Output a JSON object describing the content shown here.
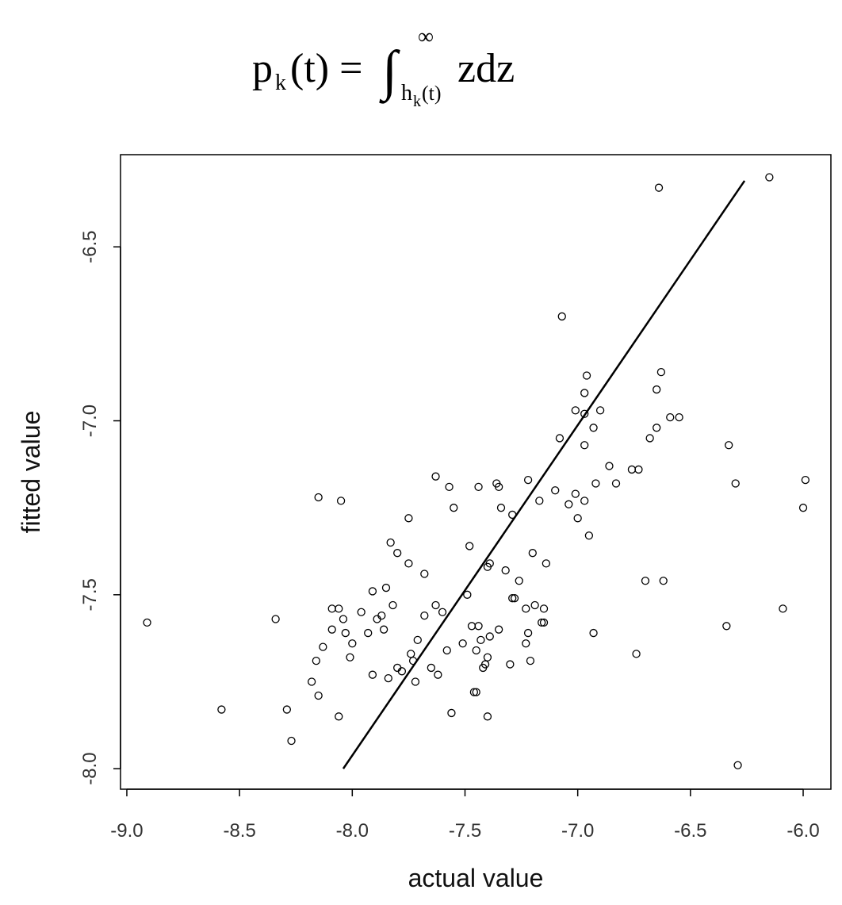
{
  "chart_data": {
    "type": "scatter",
    "title": {
      "lhs": "p",
      "lhs_sub": "k",
      "lhs_rest": "(t) =",
      "integral": "∫",
      "upper": "∞",
      "lower": "h",
      "lower_sub": "k",
      "lower_rest": "(t)",
      "integrand": "zdz"
    },
    "x_label": "actual value",
    "y_label": "fitted value",
    "xlim": [
      -9.028,
      -5.877
    ],
    "ylim": [
      -8.059,
      -6.235
    ],
    "xticks": [
      {
        "value": -9,
        "label": "-9.0"
      },
      -8.5,
      {
        "value": -8,
        "label": "-8.0"
      },
      -7.5,
      {
        "value": -7,
        "label": "-7.0"
      },
      -6.5,
      {
        "value": -6,
        "label": "-6.0"
      }
    ],
    "yticks": [
      {
        "value": -8,
        "label": "-8.0"
      },
      -7.5,
      {
        "value": -7,
        "label": "-7.0"
      },
      -6.5
    ],
    "color": "#000000",
    "x": [
      -8.91,
      -8.58,
      -8.34,
      -8.29,
      -8.27,
      -8.18,
      -8.16,
      -8.15,
      -8.15,
      -8.13,
      -8.09,
      -8.09,
      -8.06,
      -8.06,
      -8.05,
      -8.04,
      -8.03,
      -8.01,
      -8.0,
      -7.96,
      -7.93,
      -7.91,
      -7.91,
      -7.89,
      -7.87,
      -7.86,
      -7.85,
      -7.84,
      -7.82,
      -7.83,
      -7.8,
      -7.8,
      -7.78,
      -7.75,
      -7.75,
      -7.74,
      -7.73,
      -7.72,
      -7.71,
      -7.68,
      -7.68,
      -7.65,
      -7.63,
      -7.62,
      -7.63,
      -7.6,
      -7.58,
      -7.57,
      -7.56,
      -7.55,
      -7.51,
      -7.49,
      -7.48,
      -7.47,
      -7.46,
      -7.45,
      -7.45,
      -7.44,
      -7.44,
      -7.43,
      -7.42,
      -7.41,
      -7.4,
      -7.4,
      -7.4,
      -7.39,
      -7.39,
      -7.36,
      -7.35,
      -7.34,
      -7.35,
      -7.32,
      -7.3,
      -7.29,
      -7.28,
      -7.29,
      -7.26,
      -7.23,
      -7.23,
      -7.22,
      -7.22,
      -7.21,
      -7.2,
      -7.19,
      -7.17,
      -7.16,
      -7.15,
      -7.15,
      -7.14,
      -7.1,
      -7.08,
      -7.07,
      -7.04,
      -7.01,
      -7.01,
      -7.0,
      -6.97,
      -6.97,
      -6.97,
      -6.97,
      -6.96,
      -6.95,
      -6.93,
      -6.93,
      -6.92,
      -6.9,
      -6.86,
      -6.83,
      -6.76,
      -6.74,
      -6.73,
      -6.7,
      -6.68,
      -6.65,
      -6.65,
      -6.63,
      -6.62,
      -6.59,
      -6.55,
      -6.64,
      -6.33,
      -6.3,
      -6.29,
      -6.34,
      -6.15,
      -6.09,
      -6.0,
      -5.99
    ],
    "values": [
      -7.58,
      -7.83,
      -7.57,
      -7.83,
      -7.92,
      -7.75,
      -7.69,
      -7.79,
      -7.22,
      -7.65,
      -7.6,
      -7.54,
      -7.54,
      -7.85,
      -7.23,
      -7.57,
      -7.61,
      -7.68,
      -7.64,
      -7.55,
      -7.61,
      -7.49,
      -7.73,
      -7.57,
      -7.56,
      -7.6,
      -7.48,
      -7.74,
      -7.53,
      -7.35,
      -7.38,
      -7.71,
      -7.72,
      -7.28,
      -7.41,
      -7.67,
      -7.69,
      -7.75,
      -7.63,
      -7.44,
      -7.56,
      -7.71,
      -7.16,
      -7.73,
      -7.53,
      -7.55,
      -7.66,
      -7.19,
      -7.84,
      -7.25,
      -7.64,
      -7.5,
      -7.36,
      -7.59,
      -7.78,
      -7.66,
      -7.78,
      -7.19,
      -7.59,
      -7.63,
      -7.71,
      -7.7,
      -7.85,
      -7.42,
      -7.68,
      -7.41,
      -7.62,
      -7.18,
      -7.19,
      -7.25,
      -7.6,
      -7.43,
      -7.7,
      -7.51,
      -7.51,
      -7.27,
      -7.46,
      -7.64,
      -7.54,
      -7.61,
      -7.17,
      -7.69,
      -7.38,
      -7.53,
      -7.23,
      -7.58,
      -7.58,
      -7.54,
      -7.41,
      -7.2,
      -7.05,
      -6.7,
      -7.24,
      -6.97,
      -7.21,
      -7.28,
      -6.92,
      -7.23,
      -7.07,
      -6.98,
      -6.87,
      -7.33,
      -7.61,
      -7.02,
      -7.18,
      -6.97,
      -7.13,
      -7.18,
      -7.14,
      -7.67,
      -7.14,
      -7.46,
      -7.05,
      -7.02,
      -6.91,
      -6.86,
      -7.46,
      -6.99,
      -6.99,
      -6.33,
      -7.07,
      -7.18,
      -7.99,
      -7.59,
      -6.3,
      -7.54,
      -7.25,
      -7.17
    ],
    "line": {
      "x": [
        -8.04,
        -6.26
      ],
      "values": [
        -8.0,
        -6.31
      ]
    }
  }
}
